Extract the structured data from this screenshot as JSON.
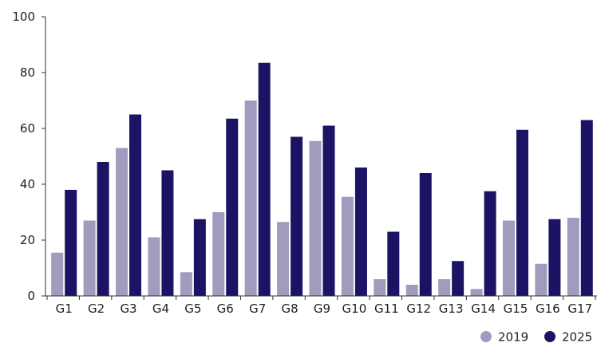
{
  "chart_data": {
    "type": "bar",
    "title": "",
    "xlabel": "",
    "ylabel": "",
    "ylim": [
      0,
      100
    ],
    "yticks": [
      "0",
      "20",
      "40",
      "60",
      "80",
      "100"
    ],
    "grid": false,
    "legend_position": "bottom-right",
    "categories": [
      "G1",
      "G2",
      "G3",
      "G4",
      "G5",
      "G6",
      "G7",
      "G8",
      "G9",
      "G10",
      "G11",
      "G12",
      "G13",
      "G14",
      "G15",
      "G16",
      "G17"
    ],
    "series": [
      {
        "name": "2019",
        "color": "#a09cbd",
        "values": [
          15.5,
          27,
          53,
          21,
          8.5,
          30,
          70,
          26.5,
          55.5,
          35.5,
          6,
          4,
          6,
          2.5,
          27,
          11.5,
          28
        ]
      },
      {
        "name": "2025",
        "color": "#1b1464",
        "values": [
          38,
          48,
          65,
          45,
          27.5,
          63.5,
          83.5,
          57,
          61,
          46,
          23,
          44,
          12.5,
          37.5,
          59.5,
          27.5,
          63
        ]
      }
    ]
  }
}
